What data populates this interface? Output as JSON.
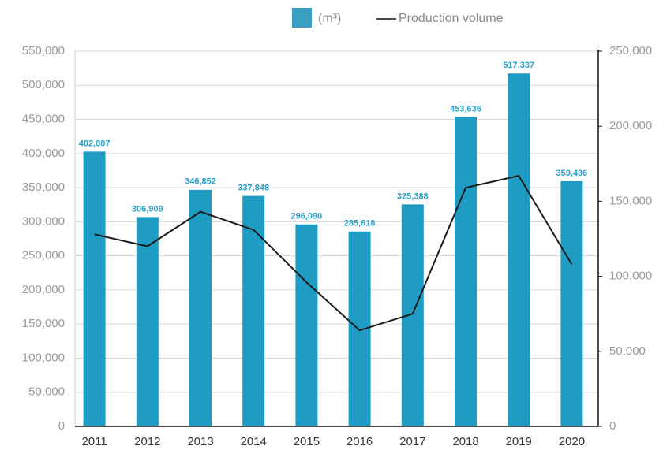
{
  "chart_data": {
    "type": "bar-line",
    "categories": [
      "2011",
      "2012",
      "2013",
      "2014",
      "2015",
      "2016",
      "2017",
      "2018",
      "2019",
      "2020"
    ],
    "series": [
      {
        "name": "(m³)",
        "color": "#1e9cc4",
        "type": "bar",
        "values": [
          402807,
          306909,
          346852,
          337848,
          296090,
          285618,
          325388,
          453636,
          517337,
          359436
        ],
        "value_labels": [
          "402,807",
          "306,909",
          "346,852",
          "337,848",
          "296,090",
          "285,618",
          "325,388",
          "453,636",
          "517,337",
          "359,436"
        ]
      },
      {
        "name": "Production volume",
        "color": "#1a1a1a",
        "type": "line",
        "axis": "y2",
        "values": [
          128000,
          120000,
          143000,
          131000,
          96000,
          64000,
          75000,
          159000,
          167000,
          108000
        ]
      }
    ],
    "ylim": [
      0,
      550000
    ],
    "yticks": [
      0,
      {
        "value": 50000,
        "label": "50,000"
      },
      {
        "value": 100000,
        "label": "100,000"
      },
      {
        "value": 150000,
        "label": "150,000"
      },
      {
        "value": 200000,
        "label": "200,000"
      },
      {
        "value": 250000,
        "label": "250,000"
      },
      {
        "value": 300000,
        "label": "300,000"
      },
      {
        "value": 350000,
        "label": "350,000"
      },
      {
        "value": 400000,
        "label": "400,000"
      },
      {
        "value": 450000,
        "label": "450,000"
      },
      {
        "value": 500000,
        "label": "500,000"
      },
      {
        "value": 550000,
        "label": "550,000"
      }
    ],
    "y2lim": [
      0,
      250000
    ],
    "y2ticks": [
      0,
      {
        "value": 50000,
        "label": "50,000"
      },
      {
        "value": 100000,
        "label": "100,000"
      },
      {
        "value": 150000,
        "label": "150,000"
      },
      {
        "value": 200000,
        "label": "200,000"
      },
      {
        "value": 250000,
        "label": "250,000"
      }
    ],
    "grid": true
  }
}
